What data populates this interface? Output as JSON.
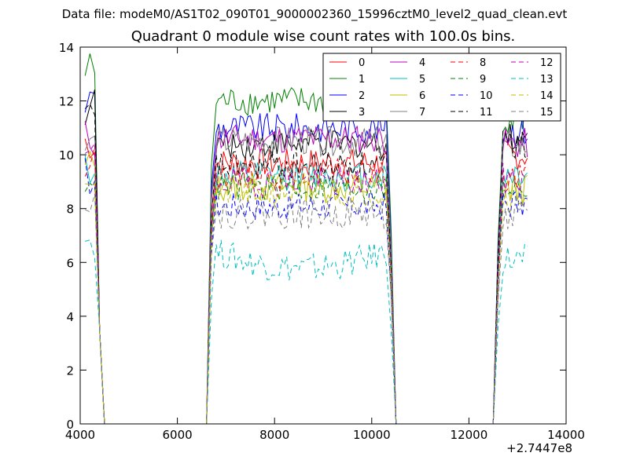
{
  "header": {
    "data_file": "Data file: modeM0/AS1T02_090T01_9000002360_15996cztM0_level2_quad_clean.evt"
  },
  "chart_data": {
    "type": "line",
    "title": "Quadrant 0 module wise count rates with 100.0s bins.",
    "xlabel": "",
    "ylabel": "",
    "x_offset_label": "+2.7447e8",
    "xlim": [
      4000,
      14000
    ],
    "ylim": [
      0,
      14
    ],
    "xticks": [
      4000,
      6000,
      8000,
      10000,
      12000,
      14000
    ],
    "yticks": [
      0,
      2,
      4,
      6,
      8,
      10,
      12,
      14
    ],
    "grid": false,
    "legend_position": "top-right",
    "segments": [
      {
        "x_start": 4100,
        "x_end": 4300
      },
      {
        "x_start": 6800,
        "x_end": 10300
      },
      {
        "x_start": 12700,
        "x_end": 13200
      }
    ],
    "gaps": [
      {
        "x_start": 4500,
        "x_end": 6600,
        "y": 0
      },
      {
        "x_start": 10500,
        "x_end": 12500,
        "y": 0
      }
    ],
    "series": [
      {
        "name": "0",
        "color": "#ff0000",
        "dash": "solid",
        "mean": 9.7,
        "s1_level": 10.5,
        "s3_level": 10.0
      },
      {
        "name": "1",
        "color": "#008000",
        "dash": "solid",
        "mean": 12.0,
        "s1_level": 13.1,
        "s3_level": 11.4
      },
      {
        "name": "2",
        "color": "#0000ff",
        "dash": "solid",
        "mean": 11.0,
        "s1_level": 12.0,
        "s3_level": 10.9
      },
      {
        "name": "3",
        "color": "#000000",
        "dash": "solid",
        "mean": 10.4,
        "s1_level": 11.8,
        "s3_level": 10.6
      },
      {
        "name": "4",
        "color": "#bf00bf",
        "dash": "solid",
        "mean": 10.6,
        "s1_level": 10.6,
        "s3_level": 10.4
      },
      {
        "name": "5",
        "color": "#00bfbf",
        "dash": "solid",
        "mean": 9.2,
        "s1_level": 9.6,
        "s3_level": 9.3
      },
      {
        "name": "6",
        "color": "#bfbf00",
        "dash": "solid",
        "mean": 8.8,
        "s1_level": 9.5,
        "s3_level": 8.7
      },
      {
        "name": "7",
        "color": "#808080",
        "dash": "solid",
        "mean": 10.5,
        "s1_level": 10.3,
        "s3_level": 10.3
      },
      {
        "name": "8",
        "color": "#ff0000",
        "dash": "dashed",
        "mean": 9.3,
        "s1_level": 9.6,
        "s3_level": 9.2
      },
      {
        "name": "9",
        "color": "#008000",
        "dash": "dashed",
        "mean": 8.8,
        "s1_level": 9.3,
        "s3_level": 8.8
      },
      {
        "name": "10",
        "color": "#0000ff",
        "dash": "dashed",
        "mean": 8.1,
        "s1_level": 9.2,
        "s3_level": 8.2
      },
      {
        "name": "11",
        "color": "#000000",
        "dash": "dashed",
        "mean": 9.6,
        "s1_level": 11.3,
        "s3_level": 10.4
      },
      {
        "name": "12",
        "color": "#bf00bf",
        "dash": "dashed",
        "mean": 9.0,
        "s1_level": 9.9,
        "s3_level": 9.1
      },
      {
        "name": "13",
        "color": "#00bfbf",
        "dash": "dashed",
        "mean": 5.8,
        "s1_level": 6.9,
        "s3_level": 6.1
      },
      {
        "name": "14",
        "color": "#bfbf00",
        "dash": "dashed",
        "mean": 8.6,
        "s1_level": 9.3,
        "s3_level": 8.5
      },
      {
        "name": "15",
        "color": "#808080",
        "dash": "dashed",
        "mean": 7.8,
        "s1_level": 8.6,
        "s3_level": 7.6
      }
    ]
  }
}
